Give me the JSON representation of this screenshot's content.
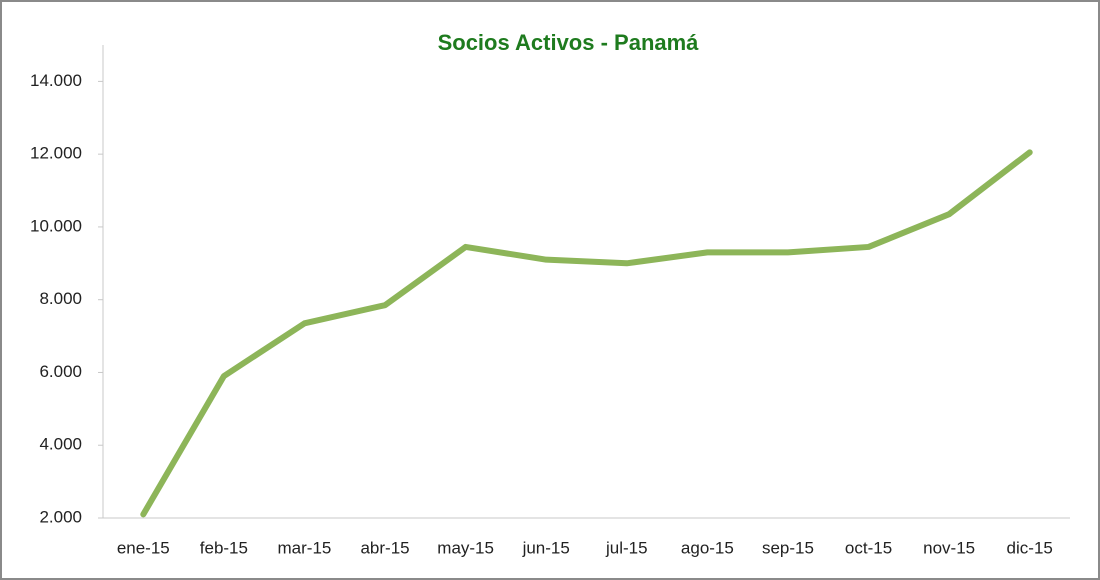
{
  "chart_data": {
    "type": "line",
    "title": "Socios Activos - Panamá",
    "categories": [
      "ene-15",
      "feb-15",
      "mar-15",
      "abr-15",
      "may-15",
      "jun-15",
      "jul-15",
      "ago-15",
      "sep-15",
      "oct-15",
      "nov-15",
      "dic-15"
    ],
    "series": [
      {
        "color": "#8db559",
        "values": [
          2100,
          5900,
          7350,
          7850,
          9450,
          9100,
          9000,
          9300,
          9300,
          9450,
          10350,
          12050
        ]
      }
    ],
    "ylim": [
      2000,
      15000
    ],
    "yticks": [
      {
        "value": 2000,
        "label": "2.000"
      },
      {
        "value": 4000,
        "label": "4.000"
      },
      {
        "value": 6000,
        "label": "6.000"
      },
      {
        "value": 8000,
        "label": "8.000"
      },
      {
        "value": 10000,
        "label": "10.000"
      },
      {
        "value": 12000,
        "label": "12.000"
      },
      {
        "value": 14000,
        "label": "14.000"
      }
    ],
    "grid": false
  }
}
